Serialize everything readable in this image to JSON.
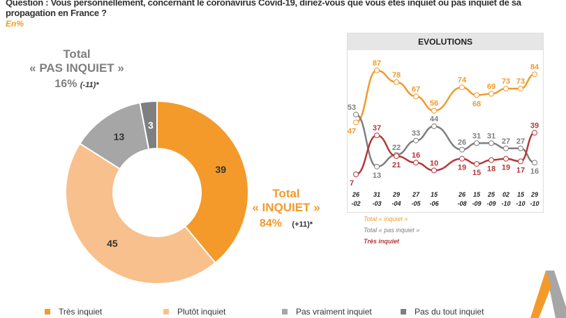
{
  "question": "Question : Vous personnellement, concernant le coronavirus Covid-19, diriez-vous que vous êtes inquiet ou pas inquiet de sa propagation en France ?",
  "unit": "En%",
  "totals": {
    "pas_inquiet": {
      "title": "Total",
      "label": "« PAS INQUIET »",
      "value": "16%",
      "delta": "(-11)*"
    },
    "inquiet": {
      "title": "Total",
      "label": "« INQUIET »",
      "value": "84%",
      "delta": "(+11)*"
    }
  },
  "colors": {
    "tres": "#f39a2a",
    "plutot": "#f8c08c",
    "pas_vraiment": "#a6a6a6",
    "pas_du_tout": "#7f7f7f",
    "line_inquiet": "#f39a2a",
    "line_pas": "#7f7f7f",
    "line_tres": "#b5373a"
  },
  "chart_data": [
    {
      "type": "pie",
      "donut": true,
      "slices": [
        {
          "name": "Très inquiet",
          "value": 39
        },
        {
          "name": "Plutôt inquiet",
          "value": 45
        },
        {
          "name": "Pas vraiment inquiet",
          "value": 13
        },
        {
          "name": "Pas du tout inquiet",
          "value": 3
        }
      ],
      "legend": "bottom"
    },
    {
      "type": "line",
      "title": "EVOLUTIONS",
      "x_labels": [
        [
          "26",
          "-02"
        ],
        [
          "31",
          "-03"
        ],
        [
          "29",
          "-04"
        ],
        [
          "27",
          "-05"
        ],
        [
          "15",
          "-06"
        ],
        [
          "26",
          "-08"
        ],
        [
          "15",
          "-09"
        ],
        [
          "25",
          "-09"
        ],
        [
          "02",
          "-10"
        ],
        [
          "15",
          "-10"
        ],
        [
          "29",
          "-10"
        ]
      ],
      "x_day_of_year": [
        57,
        90,
        119,
        147,
        166,
        238,
        258,
        268,
        275,
        288,
        302
      ],
      "series": [
        {
          "name": "Total « inquiet »",
          "values": [
            47,
            87,
            78,
            67,
            56,
            74,
            68,
            69,
            73,
            73,
            84
          ]
        },
        {
          "name": "Total « pas inquiet »",
          "values": [
            53,
            13,
            22,
            33,
            44,
            26,
            31,
            31,
            27,
            27,
            16
          ]
        },
        {
          "name": "Très inquiet",
          "values": [
            7,
            37,
            21,
            16,
            10,
            19,
            15,
            18,
            19,
            17,
            39
          ]
        }
      ],
      "legend": "bottom-left"
    }
  ]
}
